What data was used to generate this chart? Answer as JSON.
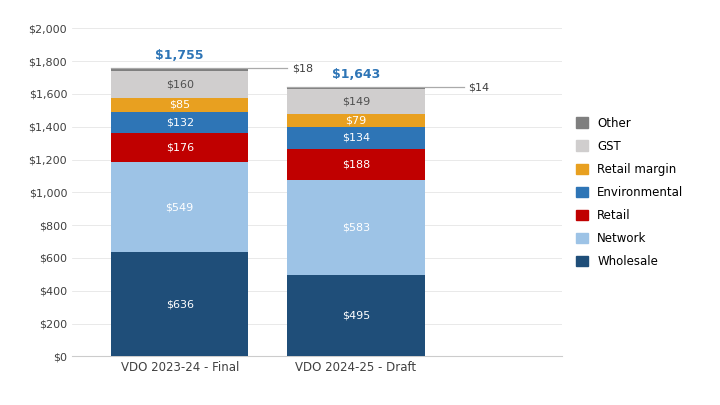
{
  "categories": [
    "VDO 2023-24 - Final",
    "VDO 2024-25 - Draft"
  ],
  "segments": [
    {
      "label": "Wholesale",
      "values": [
        636,
        495
      ],
      "color": "#1f4e79"
    },
    {
      "label": "Network",
      "values": [
        549,
        583
      ],
      "color": "#9dc3e6"
    },
    {
      "label": "Retail",
      "values": [
        176,
        188
      ],
      "color": "#c00000"
    },
    {
      "label": "Environmental",
      "values": [
        132,
        134
      ],
      "color": "#2e75b6"
    },
    {
      "label": "Retail margin",
      "values": [
        85,
        79
      ],
      "color": "#e8a020"
    },
    {
      "label": "GST",
      "values": [
        160,
        149
      ],
      "color": "#d0cece"
    },
    {
      "label": "Other",
      "values": [
        18,
        14
      ],
      "color": "#7f7f7f"
    }
  ],
  "total_labels": [
    "$1,755",
    "$1,643"
  ],
  "other_labels": [
    "$18",
    "$14"
  ],
  "ylim": [
    0,
    2000
  ],
  "yticks": [
    0,
    200,
    400,
    600,
    800,
    1000,
    1200,
    1400,
    1600,
    1800,
    2000
  ],
  "ytick_labels": [
    "$0",
    "$200",
    "$400",
    "$600",
    "$800",
    "$1,000",
    "$1,200",
    "$1,400",
    "$1,600",
    "$1,800",
    "$2,000"
  ],
  "bar_width": 0.28,
  "x_positions": [
    0.22,
    0.58
  ],
  "total_color": "#2e75b6",
  "other_line_color": "#aaaaaa",
  "background_color": "#ffffff",
  "text_color_dark": "#404040",
  "text_color_white": "#ffffff",
  "gst_text_color": "#505050"
}
